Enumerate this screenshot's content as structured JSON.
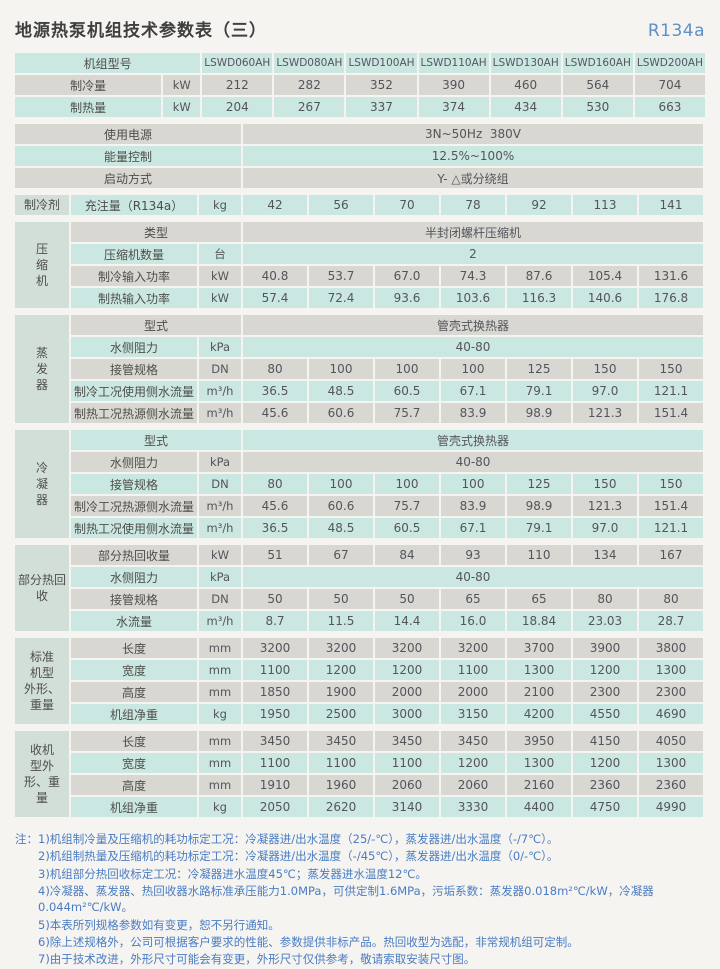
{
  "page": {
    "title": "地源热泵机组技术参数表（三）",
    "badge": "R134a"
  },
  "colors": {
    "row_cyan": "#cbe7e2",
    "row_gray": "#d8d7d2",
    "group_cell": "#d2ded8",
    "note_blue": "#4a7cc2",
    "badge_blue": "#5e90ca"
  },
  "table": {
    "rows": [
      {
        "sec": true,
        "wide": true,
        "label": "机组型号",
        "values": [
          "LSWD060AH",
          "LSWD080AH",
          "LSWD100AH",
          "LSWD110AH",
          "LSWD130AH",
          "LSWD160AH",
          "LSWD200AH"
        ]
      },
      {
        "wide": true,
        "label": "制冷量",
        "unit": "kW",
        "values": [
          "212",
          "282",
          "352",
          "390",
          "460",
          "564",
          "704"
        ]
      },
      {
        "wide": true,
        "label": "制热量",
        "unit": "kW",
        "values": [
          "204",
          "267",
          "337",
          "374",
          "434",
          "530",
          "663"
        ]
      },
      {
        "sec": true,
        "wide": true,
        "label": "使用电源",
        "span": "3N~50Hz  380V"
      },
      {
        "wide": true,
        "label": "能量控制",
        "span": "12.5%~100%"
      },
      {
        "wide": true,
        "label": "启动方式",
        "span": "Y- △或分绕组"
      },
      {
        "sec": true,
        "g": "制冷剂",
        "gr": 1,
        "label": "充注量（R134a）",
        "unit": "kg",
        "values": [
          "42",
          "56",
          "70",
          "78",
          "92",
          "113",
          "141"
        ]
      },
      {
        "sec": true,
        "g": "压\n缩\n机",
        "gr": 4,
        "label": "类型",
        "span": "半封闭螺杆压缩机"
      },
      {
        "label": "压缩机数量",
        "unit": "台",
        "span": "2"
      },
      {
        "label": "制冷输入功率",
        "unit": "kW",
        "values": [
          "40.8",
          "53.7",
          "67.0",
          "74.3",
          "87.6",
          "105.4",
          "131.6"
        ]
      },
      {
        "label": "制热输入功率",
        "unit": "kW",
        "values": [
          "57.4",
          "72.4",
          "93.6",
          "103.6",
          "116.3",
          "140.6",
          "176.8"
        ]
      },
      {
        "sec": true,
        "g": "蒸\n发\n器",
        "gr": 5,
        "label": "型式",
        "span": "管壳式换热器"
      },
      {
        "label": "水侧阻力",
        "unit": "kPa",
        "span": "40-80"
      },
      {
        "label": "接管规格",
        "unit": "DN",
        "values": [
          "80",
          "100",
          "100",
          "100",
          "125",
          "150",
          "150"
        ]
      },
      {
        "label": "制冷工况使用侧水流量",
        "unit": "m³/h",
        "values": [
          "36.5",
          "48.5",
          "60.5",
          "67.1",
          "79.1",
          "97.0",
          "121.1"
        ]
      },
      {
        "label": "制热工况热源侧水流量",
        "unit": "m³/h",
        "values": [
          "45.6",
          "60.6",
          "75.7",
          "83.9",
          "98.9",
          "121.3",
          "151.4"
        ]
      },
      {
        "sec": true,
        "g": "冷\n凝\n器",
        "gr": 5,
        "label": "型式",
        "span": "管壳式换热器"
      },
      {
        "label": "水侧阻力",
        "unit": "kPa",
        "span": "40-80"
      },
      {
        "label": "接管规格",
        "unit": "DN",
        "values": [
          "80",
          "100",
          "100",
          "100",
          "125",
          "150",
          "150"
        ]
      },
      {
        "label": "制冷工况热源侧水流量",
        "unit": "m³/h",
        "values": [
          "45.6",
          "60.6",
          "75.7",
          "83.9",
          "98.9",
          "121.3",
          "151.4"
        ]
      },
      {
        "label": "制热工况使用侧水流量",
        "unit": "m³/h",
        "values": [
          "36.5",
          "48.5",
          "60.5",
          "67.1",
          "79.1",
          "97.0",
          "121.1"
        ]
      },
      {
        "sec": true,
        "g": "部分热回\n收",
        "gr": 4,
        "label": "部分热回收量",
        "unit": "kW",
        "values": [
          "51",
          "67",
          "84",
          "93",
          "110",
          "134",
          "167"
        ]
      },
      {
        "label": "水侧阻力",
        "unit": "kPa",
        "span": "40-80"
      },
      {
        "label": "接管规格",
        "unit": "DN",
        "values": [
          "50",
          "50",
          "50",
          "65",
          "65",
          "80",
          "80"
        ]
      },
      {
        "label": "水流量",
        "unit": "m³/h",
        "values": [
          "8.7",
          "11.5",
          "14.4",
          "16.0",
          "18.84",
          "23.03",
          "28.7"
        ]
      },
      {
        "sec": true,
        "g": "标准\n机型\n外形、\n重量",
        "gr": 4,
        "label": "长度",
        "unit": "mm",
        "values": [
          "3200",
          "3200",
          "3200",
          "3200",
          "3700",
          "3900",
          "3800"
        ]
      },
      {
        "label": "宽度",
        "unit": "mm",
        "values": [
          "1100",
          "1200",
          "1200",
          "1100",
          "1300",
          "1200",
          "1300"
        ]
      },
      {
        "label": "高度",
        "unit": "mm",
        "values": [
          "1850",
          "1900",
          "2000",
          "2000",
          "2100",
          "2300",
          "2300"
        ]
      },
      {
        "label": "机组净重",
        "unit": "kg",
        "values": [
          "1950",
          "2500",
          "3000",
          "3150",
          "4200",
          "4550",
          "4690"
        ]
      },
      {
        "sec": true,
        "g": "收机\n型外\n形、重\n量",
        "gr": 4,
        "label": "长度",
        "unit": "mm",
        "values": [
          "3450",
          "3450",
          "3450",
          "3450",
          "3950",
          "4150",
          "4050"
        ]
      },
      {
        "label": "宽度",
        "unit": "mm",
        "values": [
          "1100",
          "1100",
          "1100",
          "1200",
          "1300",
          "1200",
          "1300"
        ]
      },
      {
        "label": "高度",
        "unit": "mm",
        "values": [
          "1910",
          "1960",
          "2060",
          "2060",
          "2160",
          "2360",
          "2360"
        ]
      },
      {
        "label": "机组净重",
        "unit": "kg",
        "values": [
          "2050",
          "2620",
          "3140",
          "3330",
          "4400",
          "4750",
          "4990"
        ]
      }
    ]
  },
  "notes": {
    "prefix": "注：",
    "items": [
      "1)机组制冷量及压缩机的耗功标定工况：冷凝器进/出水温度（25/-℃），蒸发器进/出水温度（-/7℃）。",
      "2)机组制热量及压缩机的耗功标定工况：冷凝器进/出水温度（-/45℃），蒸发器进/出水温度（0/-℃）。",
      "3)机组部分热回收标定工况：冷凝器进水温度45℃；蒸发器进水温度12℃。",
      "4)冷凝器、蒸发器、热回收器水路标准承压能力1.0MPa，可供定制1.6MPa，污垢系数：蒸发器0.018m²℃/kW，冷凝器0.044m²℃/kW。",
      "5)本表所列规格参数如有变更，恕不另行通知。",
      "6)除上述规格外，公司可根据客户要求的性能、参数提供非标产品。热回收型为选配，非常规机组可定制。",
      "7)由于技术改进，外形尺寸可能会有变更，外形尺寸仅供参考，敬请索取安装尺寸图。"
    ]
  }
}
